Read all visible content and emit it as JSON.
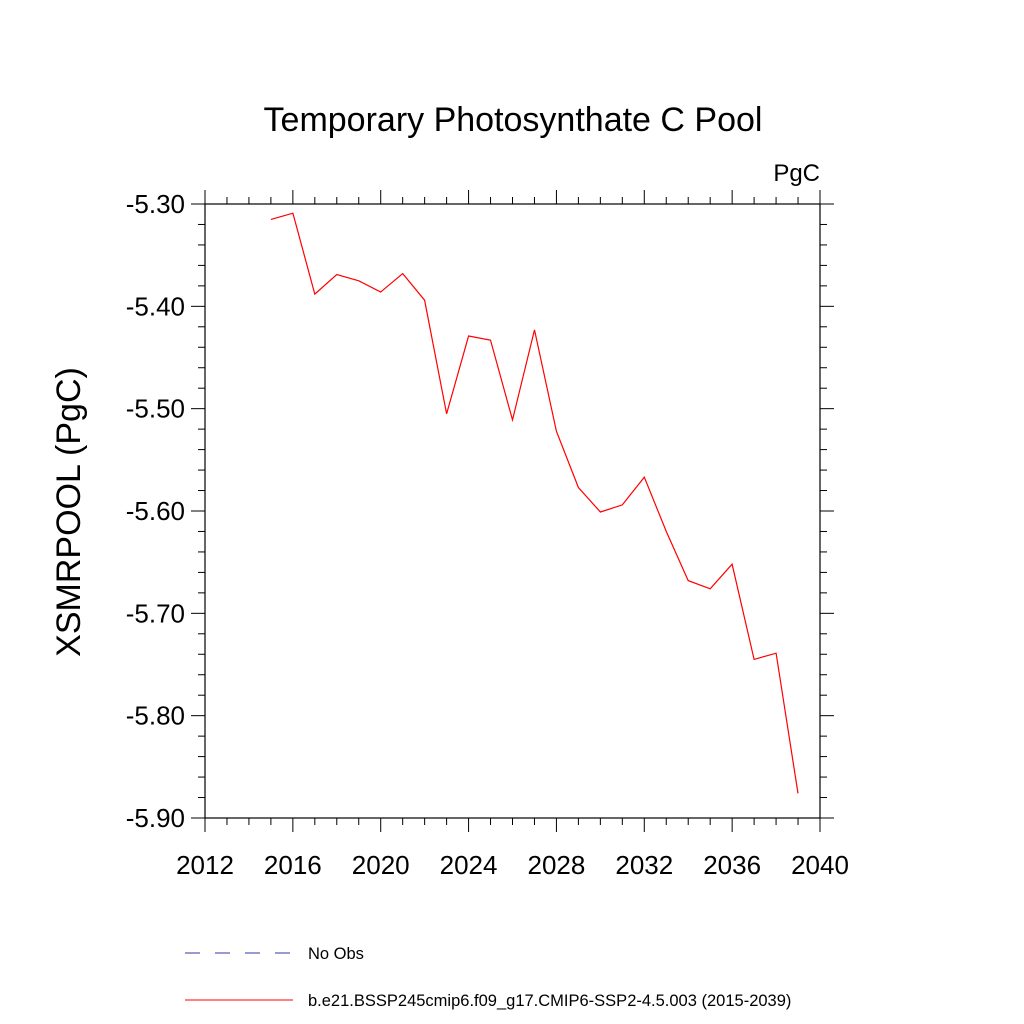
{
  "chart_data": {
    "type": "line",
    "title": "Temporary Photosynthate C Pool",
    "units_label": "PgC",
    "xlabel": "",
    "ylabel": "XSMRPOOL  (PgC)",
    "xlim": [
      2012,
      2040
    ],
    "ylim": [
      -5.9,
      -5.3
    ],
    "x_ticks": [
      2012,
      2016,
      2020,
      2024,
      2028,
      2032,
      2036,
      2040
    ],
    "x_tick_labels": [
      "2012",
      "2016",
      "2020",
      "2024",
      "2028",
      "2032",
      "2036",
      "2040"
    ],
    "y_ticks": [
      -5.3,
      -5.4,
      -5.5,
      -5.6,
      -5.7,
      -5.8,
      -5.9
    ],
    "y_tick_labels": [
      "-5.30",
      "-5.40",
      "-5.50",
      "-5.60",
      "-5.70",
      "-5.80",
      "-5.90"
    ],
    "grid": false,
    "series": [
      {
        "name": "b.e21.BSSP245cmip6.f09_g17.CMIP6-SSP2-4.5.003 (2015-2039)",
        "color": "#ff0000",
        "dash": "solid",
        "x": [
          2015,
          2016,
          2017,
          2018,
          2019,
          2020,
          2021,
          2022,
          2023,
          2024,
          2025,
          2026,
          2027,
          2028,
          2029,
          2030,
          2031,
          2032,
          2033,
          2034,
          2035,
          2036,
          2037,
          2038,
          2039
        ],
        "values": [
          -5.315,
          -5.309,
          -5.388,
          -5.369,
          -5.375,
          -5.386,
          -5.368,
          -5.394,
          -5.505,
          -5.429,
          -5.433,
          -5.511,
          -5.423,
          -5.522,
          -5.577,
          -5.601,
          -5.594,
          -5.567,
          -5.62,
          -5.668,
          -5.676,
          -5.652,
          -5.745,
          -5.739,
          -5.876
        ]
      }
    ],
    "legend": [
      {
        "label": "No Obs",
        "color": "#3333aa",
        "dash": "dashed"
      },
      {
        "label": "b.e21.BSSP245cmip6.f09_g17.CMIP6-SSP2-4.5.003 (2015-2039)",
        "color": "#ff0000",
        "dash": "solid"
      }
    ],
    "legend_position": "bottom-left"
  }
}
